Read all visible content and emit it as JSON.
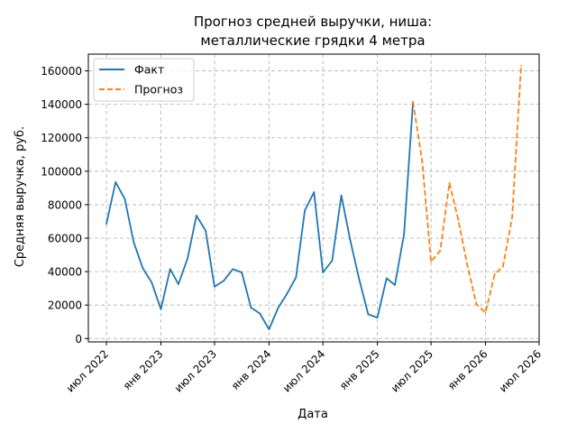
{
  "chart_data": {
    "type": "line",
    "title_lines": [
      "Прогноз средней выручки, ниша:",
      "металлические грядки 4 метра"
    ],
    "xlabel": "Дата",
    "ylabel": "Средняя выручка, руб.",
    "ylim": [
      -2000,
      170000
    ],
    "y_ticks": [
      0,
      20000,
      40000,
      60000,
      80000,
      100000,
      120000,
      140000,
      160000
    ],
    "x_ticks": [
      {
        "date": "2022-07-01",
        "label": "июл 2022"
      },
      {
        "date": "2023-01-01",
        "label": "янв 2023"
      },
      {
        "date": "2023-07-01",
        "label": "июл 2023"
      },
      {
        "date": "2024-01-01",
        "label": "янв 2024"
      },
      {
        "date": "2024-07-01",
        "label": "июл 2024"
      },
      {
        "date": "2025-01-01",
        "label": "янв 2025"
      },
      {
        "date": "2025-07-01",
        "label": "июл 2025"
      },
      {
        "date": "2026-01-01",
        "label": "янв 2026"
      },
      {
        "date": "2026-07-01",
        "label": "июл 2026"
      }
    ],
    "xlim": [
      "2022-05-01",
      "2026-07-01"
    ],
    "grid": true,
    "legend_position": "top-left",
    "series": [
      {
        "name": "Факт",
        "color": "#1f77b4",
        "style": "solid",
        "points": [
          [
            "2022-07-01",
            68500
          ],
          [
            "2022-08-01",
            93500
          ],
          [
            "2022-09-01",
            83500
          ],
          [
            "2022-10-01",
            57500
          ],
          [
            "2022-11-01",
            42000
          ],
          [
            "2022-12-01",
            33500
          ],
          [
            "2023-01-01",
            17500
          ],
          [
            "2023-02-01",
            41500
          ],
          [
            "2023-03-01",
            32500
          ],
          [
            "2023-04-01",
            48000
          ],
          [
            "2023-05-01",
            73500
          ],
          [
            "2023-06-01",
            64500
          ],
          [
            "2023-07-01",
            31000
          ],
          [
            "2023-08-01",
            34500
          ],
          [
            "2023-09-01",
            41500
          ],
          [
            "2023-10-01",
            39500
          ],
          [
            "2023-11-01",
            18500
          ],
          [
            "2023-12-01",
            15000
          ],
          [
            "2024-01-01",
            5500
          ],
          [
            "2024-02-01",
            18500
          ],
          [
            "2024-03-01",
            26500
          ],
          [
            "2024-04-01",
            36500
          ],
          [
            "2024-05-01",
            76500
          ],
          [
            "2024-06-01",
            87500
          ],
          [
            "2024-07-01",
            39500
          ],
          [
            "2024-08-01",
            46500
          ],
          [
            "2024-09-01",
            85500
          ],
          [
            "2024-10-01",
            59000
          ],
          [
            "2024-11-01",
            35000
          ],
          [
            "2024-12-01",
            14500
          ],
          [
            "2025-01-01",
            12500
          ],
          [
            "2025-02-01",
            36000
          ],
          [
            "2025-03-01",
            32000
          ],
          [
            "2025-04-01",
            62500
          ],
          [
            "2025-05-01",
            141500
          ]
        ]
      },
      {
        "name": "Прогноз",
        "color": "#ff7f0e",
        "style": "dashed",
        "points": [
          [
            "2025-05-01",
            141500
          ],
          [
            "2025-06-01",
            106500
          ],
          [
            "2025-07-01",
            46000
          ],
          [
            "2025-08-01",
            52500
          ],
          [
            "2025-09-01",
            93000
          ],
          [
            "2025-10-01",
            71000
          ],
          [
            "2025-11-01",
            43500
          ],
          [
            "2025-12-01",
            20500
          ],
          [
            "2026-01-01",
            15500
          ],
          [
            "2026-02-01",
            38500
          ],
          [
            "2026-03-01",
            43000
          ],
          [
            "2026-04-01",
            72500
          ],
          [
            "2026-05-01",
            163000
          ]
        ]
      }
    ]
  }
}
